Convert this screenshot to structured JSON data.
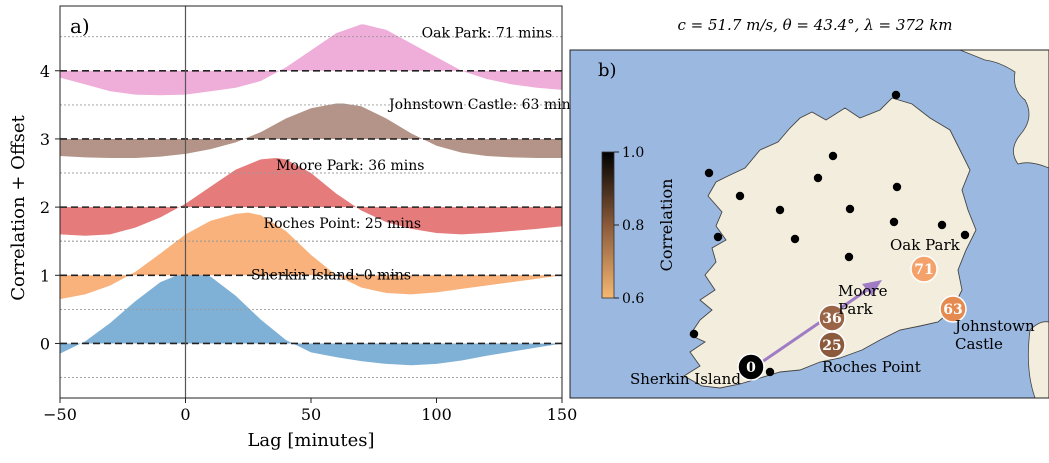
{
  "chart_data": [
    {
      "type": "area",
      "panel_label": "a)",
      "xlabel": "Lag [minutes]",
      "ylabel": "Correlation + Offset",
      "xlim": [
        -50,
        150
      ],
      "ylim": [
        -0.8,
        4.95
      ],
      "x_ticks": [
        "−50",
        "0",
        "50",
        "100",
        "150"
      ],
      "x_tick_values": [
        -50,
        0,
        50,
        100,
        150
      ],
      "y_ticks": [
        "0",
        "1",
        "2",
        "3",
        "4"
      ],
      "y_tick_values": [
        0,
        1,
        2,
        3,
        4
      ],
      "zero_line_x": 0,
      "series": [
        {
          "name": "Sherkin Island: 0 mins",
          "offset": 0,
          "color": "#7fb0d6",
          "x": [
            -50,
            -40,
            -30,
            -20,
            -10,
            0,
            10,
            20,
            30,
            40,
            50,
            60,
            70,
            80,
            90,
            100,
            110,
            120,
            130,
            140,
            150
          ],
          "y": [
            -0.15,
            0.03,
            0.3,
            0.62,
            0.9,
            1.05,
            0.98,
            0.7,
            0.35,
            0.05,
            -0.13,
            -0.2,
            -0.26,
            -0.3,
            -0.32,
            -0.3,
            -0.25,
            -0.18,
            -0.12,
            -0.06,
            0.0
          ]
        },
        {
          "name": "Roches Point: 25 mins",
          "offset": 1,
          "color": "#f9b27c",
          "x": [
            -50,
            -40,
            -30,
            -20,
            -10,
            0,
            10,
            20,
            25,
            30,
            40,
            50,
            60,
            70,
            80,
            90,
            100,
            110,
            120,
            130,
            140,
            150
          ],
          "y": [
            -0.35,
            -0.28,
            -0.15,
            0.05,
            0.32,
            0.6,
            0.8,
            0.9,
            0.92,
            0.88,
            0.65,
            0.3,
            0.0,
            -0.18,
            -0.26,
            -0.28,
            -0.25,
            -0.2,
            -0.15,
            -0.1,
            -0.05,
            0.0
          ]
        },
        {
          "name": "Moore Park: 36 mins",
          "offset": 2,
          "color": "#e57b7b",
          "x": [
            -50,
            -40,
            -30,
            -20,
            -10,
            0,
            10,
            20,
            30,
            36,
            40,
            50,
            60,
            70,
            80,
            90,
            100,
            110,
            120,
            130,
            140,
            150
          ],
          "y": [
            -0.4,
            -0.42,
            -0.4,
            -0.3,
            -0.15,
            0.05,
            0.3,
            0.55,
            0.7,
            0.72,
            0.7,
            0.5,
            0.2,
            -0.05,
            -0.22,
            -0.32,
            -0.38,
            -0.4,
            -0.38,
            -0.35,
            -0.32,
            -0.28
          ]
        },
        {
          "name": "Johnstown Castle: 63 mins",
          "offset": 3,
          "color": "#b49488",
          "x": [
            -50,
            -40,
            -30,
            -20,
            -10,
            0,
            10,
            20,
            30,
            40,
            50,
            60,
            63,
            70,
            80,
            90,
            100,
            110,
            120,
            130,
            140,
            150
          ],
          "y": [
            -0.25,
            -0.27,
            -0.28,
            -0.28,
            -0.26,
            -0.22,
            -0.15,
            -0.05,
            0.1,
            0.3,
            0.45,
            0.52,
            0.52,
            0.48,
            0.3,
            0.08,
            -0.1,
            -0.2,
            -0.25,
            -0.27,
            -0.28,
            -0.28
          ]
        },
        {
          "name": "Oak Park: 71 mins",
          "offset": 4,
          "color": "#efadd9",
          "x": [
            -50,
            -40,
            -30,
            -20,
            -10,
            0,
            10,
            20,
            30,
            40,
            50,
            60,
            70,
            71,
            80,
            90,
            100,
            110,
            120,
            130,
            140,
            150
          ],
          "y": [
            -0.1,
            -0.2,
            -0.3,
            -0.35,
            -0.36,
            -0.35,
            -0.3,
            -0.25,
            -0.15,
            0.05,
            0.3,
            0.55,
            0.68,
            0.68,
            0.6,
            0.4,
            0.2,
            0.0,
            -0.12,
            -0.2,
            -0.25,
            -0.28
          ]
        }
      ]
    },
    {
      "type": "scatter",
      "panel_label": "b)",
      "parameters_text": "c = 51.7 m/s,   θ = 43.4°,   λ = 372 km",
      "colorbar": {
        "label": "Correlation",
        "range": [
          0.6,
          1.0
        ],
        "ticks": [
          "1.0",
          "0.8",
          "0.6"
        ],
        "tick_values": [
          1.0,
          0.8,
          0.6
        ],
        "colors": [
          "#000000",
          "#8a5a3a",
          "#f5b872"
        ]
      },
      "highlighted_stations": [
        {
          "name": "Sherkin Island",
          "lag": "0",
          "correlation": 1.0,
          "color": "#000000"
        },
        {
          "name": "Roches Point",
          "lag": "25",
          "correlation": 0.92,
          "color": "#8b5a3c"
        },
        {
          "name": "Moore\nPark",
          "lag": "36",
          "correlation": 0.9,
          "color": "#9a6446"
        },
        {
          "name": "Johnstown\nCastle",
          "lag": "63",
          "correlation": 0.7,
          "color": "#e68b50"
        },
        {
          "name": "Oak Park",
          "lag": "71",
          "correlation": 0.66,
          "color": "#f5a16a"
        }
      ],
      "other_station_count": 16,
      "arrow_color": "#a07cc4",
      "sea_color": "#9bb8e0",
      "land_color": "#f2eddc"
    }
  ]
}
